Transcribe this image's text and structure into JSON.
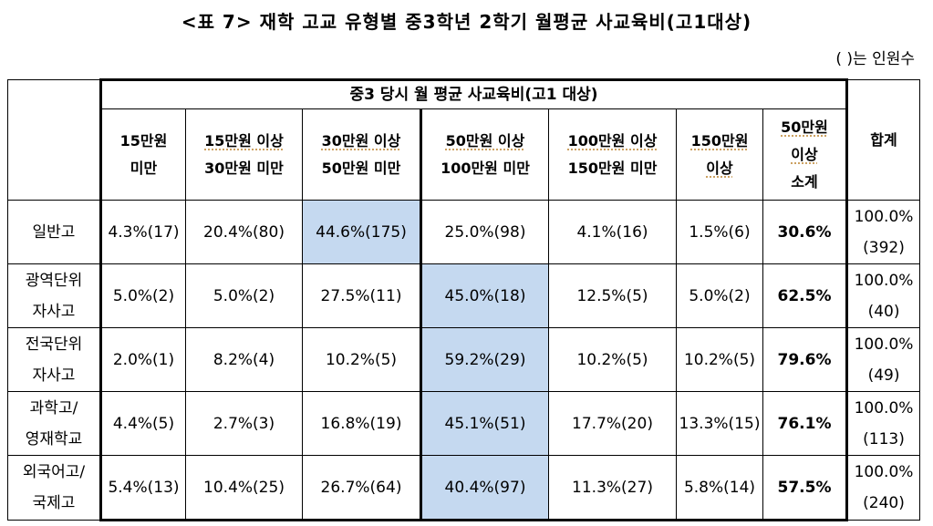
{
  "title": "<표 7> 재학 고교 유형별 중3학년 2학기 월평균 사교육비(고1대상)",
  "note": "( )는 인원수",
  "table": {
    "group_header": "중3 당시 월 평균 사교육비(고1 대상)",
    "columns": [
      [
        "15만원",
        "미만"
      ],
      [
        "15만원 이상",
        "30만원 미만"
      ],
      [
        "30만원 이상",
        "50만원 미만"
      ],
      [
        "50만원 이상",
        "100만원 미만"
      ],
      [
        "100만원 이상",
        "150만원 미만"
      ],
      [
        "150만원",
        "이상"
      ],
      [
        "50만원",
        "이상",
        "소계"
      ]
    ],
    "total_header": "합계",
    "rows": [
      {
        "label": [
          "일반고"
        ],
        "cells": [
          "4.3%(17)",
          "20.4%(80)",
          "44.6%(175)",
          "25.0%(98)",
          "4.1%(16)",
          "1.5%(6)",
          "30.6%"
        ],
        "total": [
          "100.0%",
          "(392)"
        ]
      },
      {
        "label": [
          "광역단위",
          "자사고"
        ],
        "cells": [
          "5.0%(2)",
          "5.0%(2)",
          "27.5%(11)",
          "45.0%(18)",
          "12.5%(5)",
          "5.0%(2)",
          "62.5%"
        ],
        "total": [
          "100.0%",
          "(40)"
        ]
      },
      {
        "label": [
          "전국단위",
          "자사고"
        ],
        "cells": [
          "2.0%(1)",
          "8.2%(4)",
          "10.2%(5)",
          "59.2%(29)",
          "10.2%(5)",
          "10.2%(5)",
          "79.6%"
        ],
        "total": [
          "100.0%",
          "(49)"
        ]
      },
      {
        "label": [
          "과학고/",
          "영재학교"
        ],
        "cells": [
          "4.4%(5)",
          "2.7%(3)",
          "16.8%(19)",
          "45.1%(51)",
          "17.7%(20)",
          "13.3%(15)",
          "76.1%"
        ],
        "total": [
          "100.0%",
          "(113)"
        ]
      },
      {
        "label": [
          "외국어고/",
          "국제고"
        ],
        "cells": [
          "5.4%(13)",
          "10.4%(25)",
          "26.7%(64)",
          "40.4%(97)",
          "11.3%(27)",
          "5.8%(14)",
          "57.5%"
        ],
        "total": [
          "100.0%",
          "(240)"
        ]
      }
    ]
  }
}
